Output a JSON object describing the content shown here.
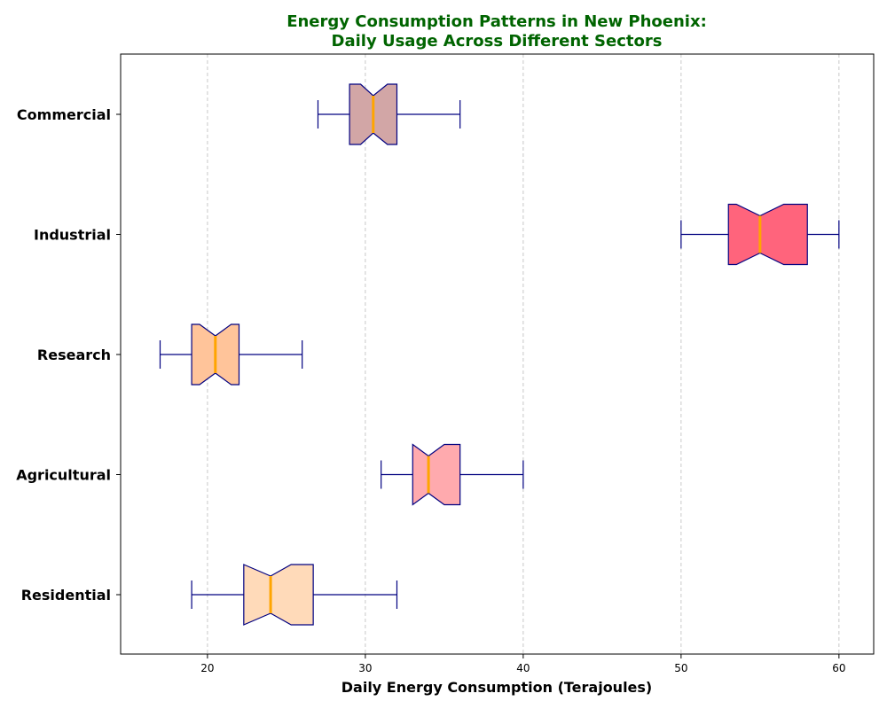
{
  "chart_data": {
    "type": "boxplot",
    "orientation": "horizontal",
    "notched": true,
    "title_line1": "Energy Consumption Patterns in New Phoenix:",
    "title_line2": "Daily Usage Across Different Sectors",
    "xlabel": "Daily Energy Consumption (Terajoules)",
    "ylabel": "",
    "xlim": [
      14.5,
      62.2
    ],
    "xticks": [
      20,
      30,
      40,
      50,
      60
    ],
    "grid": "x-dashed",
    "categories": [
      "Residential",
      "Agricultural",
      "Research",
      "Industrial",
      "Commercial"
    ],
    "series": [
      {
        "category": "Residential",
        "whisker_low": 19,
        "q1": 22.3,
        "median": 24,
        "q3": 26.7,
        "whisker_high": 32,
        "notch_low": 22.3,
        "notch_high": 25.3,
        "color": "#FFDAB9"
      },
      {
        "category": "Agricultural",
        "whisker_low": 31,
        "q1": 33,
        "median": 34,
        "q3": 36,
        "whisker_high": 40,
        "notch_low": 33,
        "notch_high": 35,
        "color": "#FFAAAE"
      },
      {
        "category": "Research",
        "whisker_low": 17,
        "q1": 19,
        "median": 20.5,
        "q3": 22,
        "whisker_high": 26,
        "notch_low": 19.5,
        "notch_high": 21.5,
        "color": "#FFC49A"
      },
      {
        "category": "Industrial",
        "whisker_low": 50,
        "q1": 53,
        "median": 55,
        "q3": 58,
        "whisker_high": 60,
        "notch_low": 53.5,
        "notch_high": 56.5,
        "color": "#FF647C"
      },
      {
        "category": "Commercial",
        "whisker_low": 27,
        "q1": 29,
        "median": 30.5,
        "q3": 32,
        "whisker_high": 36,
        "notch_low": 29.7,
        "notch_high": 31.4,
        "color": "#D2A6A6"
      }
    ],
    "edge_color": "#000080",
    "median_color": "#FFA500"
  }
}
